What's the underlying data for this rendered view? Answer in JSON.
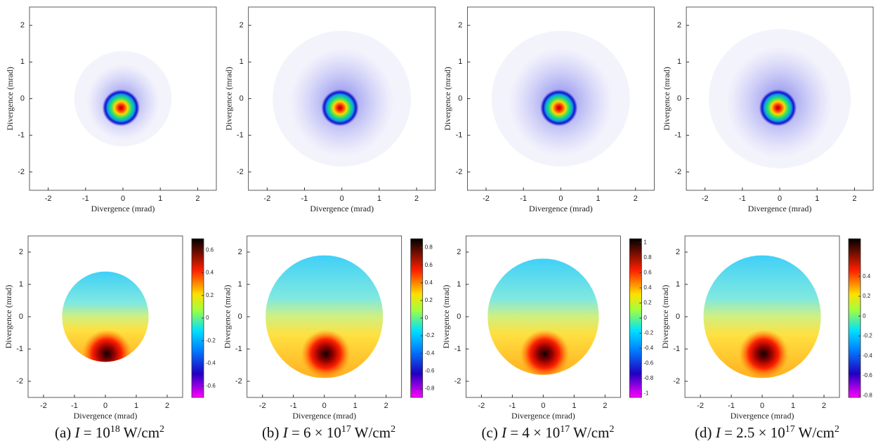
{
  "chart_data": [
    {
      "type": "heatmap",
      "xlabel": "Divergence (mrad)",
      "ylabel": "Divergence (mrad)",
      "xlim": [
        -2.5,
        2.5
      ],
      "ylim": [
        -2.5,
        2.5
      ],
      "xticks": [
        -2,
        -1,
        0,
        1,
        2
      ],
      "yticks": [
        -2,
        -1,
        0,
        1,
        2
      ]
    },
    {
      "type": "heatmap",
      "xlabel": "Divergence (mrad)",
      "ylabel": "Divergence (mrad)",
      "xlim": [
        -2.5,
        2.5
      ],
      "ylim": [
        -2.5,
        2.5
      ],
      "xticks": [
        -2,
        -1,
        0,
        1,
        2
      ],
      "yticks": [
        -2,
        -1,
        0,
        1,
        2
      ]
    },
    {
      "type": "heatmap",
      "xlabel": "Divergence (mrad)",
      "ylabel": "Divergence (mrad)",
      "xlim": [
        -2.5,
        2.5
      ],
      "ylim": [
        -2.5,
        2.5
      ],
      "xticks": [
        -2,
        -1,
        0,
        1,
        2
      ],
      "yticks": [
        -2,
        -1,
        0,
        1,
        2
      ]
    },
    {
      "type": "heatmap",
      "xlabel": "Divergence (mrad)",
      "ylabel": "Divergence (mrad)",
      "xlim": [
        -2.5,
        2.5
      ],
      "ylim": [
        -2.5,
        2.5
      ],
      "xticks": [
        -2,
        -1,
        0,
        1,
        2
      ],
      "yticks": [
        -2,
        -1,
        0,
        1,
        2
      ]
    },
    {
      "type": "heatmap",
      "xlabel": "Divergence (mrad)",
      "ylabel": "Divergence (mrad)",
      "xlim": [
        -2.5,
        2.5
      ],
      "ylim": [
        -2.5,
        2.5
      ],
      "xticks": [
        -2,
        -1,
        0,
        1,
        2
      ],
      "yticks": [
        -2,
        -1,
        0,
        1,
        2
      ],
      "colorbar": {
        "lim": [
          -0.7,
          0.7
        ],
        "ticks": [
          -0.6,
          -0.4,
          -0.2,
          0,
          0.2,
          0.4,
          0.6
        ]
      }
    },
    {
      "type": "heatmap",
      "xlabel": "Divergence (mrad)",
      "ylabel": "Divergence (mrad)",
      "xlim": [
        -2.5,
        2.5
      ],
      "ylim": [
        -2.5,
        2.5
      ],
      "xticks": [
        -2,
        -1,
        0,
        1,
        2
      ],
      "yticks": [
        -2,
        -1,
        0,
        1,
        2
      ],
      "colorbar": {
        "lim": [
          -0.9,
          0.9
        ],
        "ticks": [
          -0.8,
          -0.6,
          -0.4,
          -0.2,
          0,
          0.2,
          0.4,
          0.6,
          0.8
        ]
      }
    },
    {
      "type": "heatmap",
      "xlabel": "Divergence (mrad)",
      "ylabel": "Divergence (mrad)",
      "xlim": [
        -2.5,
        2.5
      ],
      "ylim": [
        -2.5,
        2.5
      ],
      "xticks": [
        -2,
        -1,
        0,
        1,
        2
      ],
      "yticks": [
        -2,
        -1,
        0,
        1,
        2
      ],
      "colorbar": {
        "lim": [
          -1.05,
          1.05
        ],
        "ticks": [
          -1,
          -0.8,
          -0.6,
          -0.4,
          -0.2,
          0,
          0.2,
          0.4,
          0.6,
          0.8,
          1
        ]
      }
    },
    {
      "type": "heatmap",
      "xlabel": "Divergence (mrad)",
      "ylabel": "Divergence (mrad)",
      "xlim": [
        -2.5,
        2.5
      ],
      "ylim": [
        -2.5,
        2.5
      ],
      "xticks": [
        -2,
        -1,
        0,
        1,
        2
      ],
      "yticks": [
        -2,
        -1,
        0,
        1,
        2
      ],
      "colorbar": {
        "lim": [
          -0.82,
          0.78
        ],
        "ticks": [
          -0.8,
          -0.6,
          -0.4,
          -0.2,
          0,
          0.2,
          0.4
        ]
      }
    }
  ],
  "captions": [
    {
      "label": "(a)",
      "var": "I",
      "eq": "= 10",
      "exp": "18",
      "unit": "W/cm",
      "unit_exp": "2"
    },
    {
      "label": "(b)",
      "var": "I",
      "eq": "= 6 × 10",
      "exp": "17",
      "unit": "W/cm",
      "unit_exp": "2"
    },
    {
      "label": "(c)",
      "var": "I",
      "eq": "= 4 × 10",
      "exp": "17",
      "unit": "W/cm",
      "unit_exp": "2"
    },
    {
      "label": "(d)",
      "var": "I",
      "eq": "= 2.5 × 10",
      "exp": "17",
      "unit": "W/cm",
      "unit_exp": "2"
    }
  ]
}
